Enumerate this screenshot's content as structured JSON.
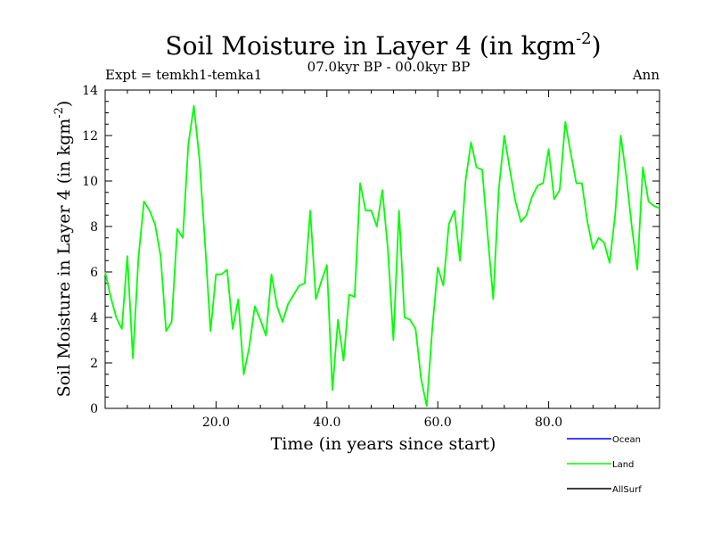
{
  "chart_data": {
    "type": "line",
    "title": "Soil Moisture in Layer 4 (in kgm",
    "title_sup": "-2",
    "title_end": ")",
    "subtitle_left": "Expt = temkh1-temka1",
    "subtitle_center": "07.0kyr BP - 00.0kyr BP",
    "subtitle_right": "Ann",
    "xlabel": "Time (in years since start)",
    "ylabel": "Soil Moisture in Layer 4 (in kgm",
    "ylabel_sup": "-2",
    "ylabel_end": ")",
    "xlim": [
      0,
      100
    ],
    "ylim": [
      0,
      14
    ],
    "x_ticks": [
      20,
      40,
      60,
      80
    ],
    "x_tick_labels": [
      "20.0",
      "40.0",
      "60.0",
      "80.0"
    ],
    "y_ticks": [
      0,
      2,
      4,
      6,
      8,
      10,
      12,
      14
    ],
    "y_tick_labels": [
      "0",
      "2",
      "4",
      "6",
      "8",
      "10",
      "12",
      "14"
    ],
    "legend": [
      {
        "name": "Ocean",
        "color": "#0000ff"
      },
      {
        "name": "Land",
        "color": "#00ff00"
      },
      {
        "name": "AllSurf",
        "color": "#000000"
      }
    ],
    "series": [
      {
        "name": "Land",
        "color": "#00ff00",
        "x": [
          0,
          1,
          2,
          3,
          4,
          5,
          6,
          7,
          8,
          9,
          10,
          11,
          12,
          13,
          14,
          15,
          16,
          17,
          18,
          19,
          20,
          21,
          22,
          23,
          24,
          25,
          26,
          27,
          28,
          29,
          30,
          31,
          32,
          33,
          34,
          35,
          36,
          37,
          38,
          39,
          40,
          41,
          42,
          43,
          44,
          45,
          46,
          47,
          48,
          49,
          50,
          51,
          52,
          53,
          54,
          55,
          56,
          57,
          58,
          59,
          60,
          61,
          62,
          63,
          64,
          65,
          66,
          67,
          68,
          69,
          70,
          71,
          72,
          73,
          74,
          75,
          76,
          77,
          78,
          79,
          80,
          81,
          82,
          83,
          84,
          85,
          86,
          87,
          88,
          89,
          90,
          91,
          92,
          93,
          94,
          95,
          96,
          97,
          98,
          99,
          100
        ],
        "values": [
          6.0,
          4.9,
          4.0,
          3.5,
          6.7,
          2.2,
          6.6,
          9.1,
          8.7,
          8.1,
          6.7,
          3.4,
          3.8,
          7.9,
          7.5,
          11.6,
          13.3,
          11.0,
          7.3,
          3.4,
          5.9,
          5.9,
          6.1,
          3.5,
          4.8,
          1.5,
          2.7,
          4.5,
          3.9,
          3.2,
          5.9,
          4.5,
          3.8,
          4.6,
          5.0,
          5.4,
          5.5,
          8.7,
          4.8,
          5.6,
          6.3,
          0.8,
          3.9,
          2.1,
          5.0,
          4.9,
          9.9,
          8.7,
          8.7,
          8.0,
          9.6,
          7.0,
          3.0,
          8.7,
          4.0,
          3.9,
          3.5,
          1.3,
          0.1,
          3.5,
          6.2,
          5.4,
          8.1,
          8.7,
          6.5,
          10.0,
          11.7,
          10.6,
          10.5,
          7.6,
          4.8,
          9.6,
          12.0,
          10.5,
          9.1,
          8.2,
          8.5,
          9.3,
          9.8,
          9.9,
          11.4,
          9.2,
          9.6,
          12.6,
          11.2,
          9.9,
          9.9,
          8.2,
          7.0,
          7.5,
          7.3,
          6.4,
          8.5,
          12.0,
          10.2,
          8.0,
          6.1,
          10.6,
          9.1,
          8.9,
          8.8
        ]
      }
    ]
  }
}
